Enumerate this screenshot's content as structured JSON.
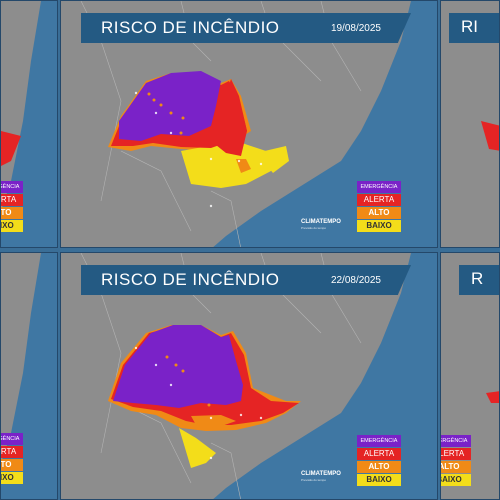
{
  "panels": [
    {
      "title": "RISCO DE INCÊNDIO",
      "date": "19/08/2025",
      "legend": [
        "EMERGÊNCIA",
        "ALERTA",
        "ALTO",
        "BAIXO"
      ],
      "logo": {
        "name": "CLIMATEMPO",
        "tagline": "Previsão do tempo"
      }
    },
    {
      "title": "RISCO DE INCÊNDIO",
      "date": "22/08/2025",
      "legend": [
        "EMERGÊNCIA",
        "ALERTA",
        "ALTO",
        "BAIXO"
      ],
      "logo": {
        "name": "CLIMATEMPO",
        "tagline": "Previsão do tempo"
      }
    }
  ],
  "side_panels": {
    "left_top_legend": [
      "EMERGÊNCIA",
      "ALERTA",
      "ALTO",
      "BAIXO"
    ],
    "left_bottom_legend": [
      "EMERGÊNCIA",
      "ALERTA",
      "ALTO",
      "BAIXO"
    ],
    "right_top_title": "RI",
    "right_bottom_title": "R",
    "right_bottom_legend": [
      "EMERGÊNCIA",
      "ALERTA",
      "ALTO",
      "BAIXO"
    ]
  },
  "colors": {
    "sea": "#3f77a3",
    "land": "#8d8d8d",
    "emergencia": "#7a22c8",
    "alerta": "#e52424",
    "alto": "#f08a16",
    "baixo": "#f3dd1a",
    "title_bar": "#245a83"
  },
  "icons": [
    "map",
    "legend",
    "logo"
  ]
}
